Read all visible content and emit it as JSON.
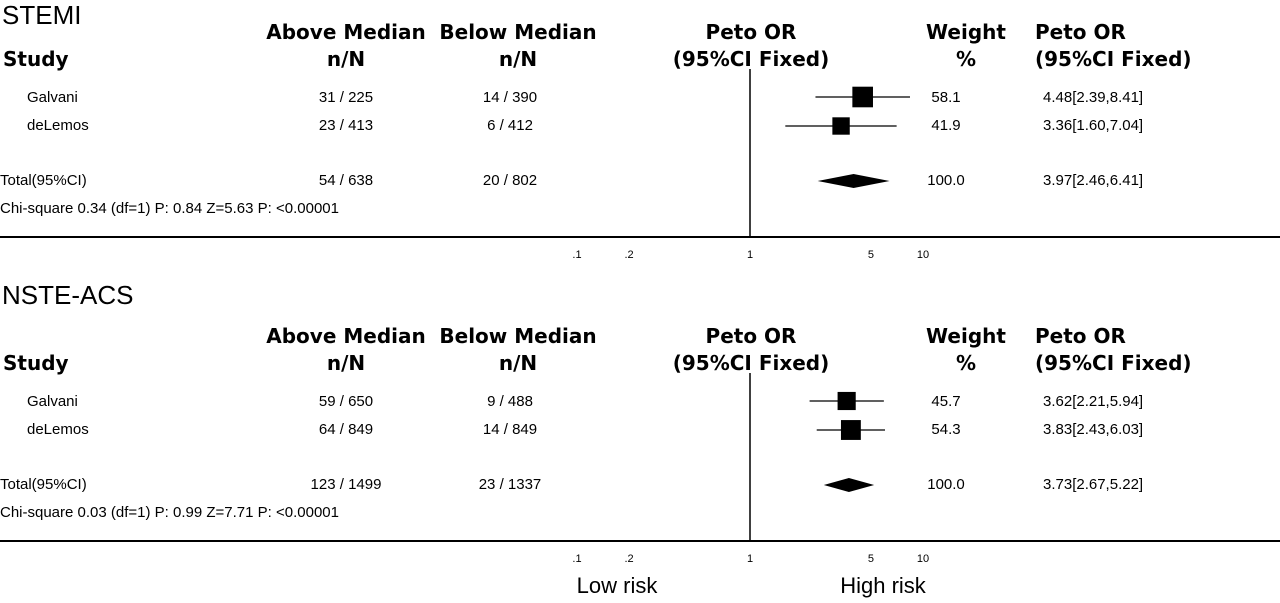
{
  "chart_data": [
    {
      "type": "forest",
      "title": "STEMI",
      "columns": {
        "study": "Study",
        "above": [
          "Above Median",
          "n/N"
        ],
        "below": [
          "Below Median",
          "n/N"
        ],
        "or_plot": [
          "Peto OR",
          "(95%CI Fixed)"
        ],
        "weight": [
          "Weight",
          "%"
        ],
        "or_text": [
          "Peto OR",
          "(95%CI Fixed)"
        ]
      },
      "studies": [
        {
          "name": "Galvani",
          "above": "31 / 225",
          "below": "14 / 390",
          "or": 4.48,
          "lo": 2.39,
          "hi": 8.41,
          "weight": 58.1,
          "weight_text": "58.1",
          "or_text": "4.48[2.39,8.41]"
        },
        {
          "name": "deLemos",
          "above": "23 / 413",
          "below": "6 / 412",
          "or": 3.36,
          "lo": 1.6,
          "hi": 7.04,
          "weight": 41.9,
          "weight_text": "41.9",
          "or_text": "3.36[1.60,7.04]"
        }
      ],
      "total": {
        "name": "Total(95%CI)",
        "above": "54 / 638",
        "below": "20 / 802",
        "or": 3.97,
        "lo": 2.46,
        "hi": 6.41,
        "weight_text": "100.0",
        "or_text": "3.97[2.46,6.41]"
      },
      "stats": "Chi-square 0.34 (df=1) P: 0.84  Z=5.63 P: <0.00001",
      "x_ticks": [
        ".1",
        ".2",
        "1",
        "5",
        "10"
      ],
      "x_tick_values": [
        0.1,
        0.2,
        1,
        5,
        10
      ],
      "x_scale": "log",
      "null_line": 1
    },
    {
      "type": "forest",
      "title": "NSTE-ACS",
      "columns": {
        "study": "Study",
        "above": [
          "Above Median",
          "n/N"
        ],
        "below": [
          "Below Median",
          "n/N"
        ],
        "or_plot": [
          "Peto OR",
          "(95%CI Fixed)"
        ],
        "weight": [
          "Weight",
          "%"
        ],
        "or_text": [
          "Peto OR",
          "(95%CI Fixed)"
        ]
      },
      "studies": [
        {
          "name": "Galvani",
          "above": "59 / 650",
          "below": "9 / 488",
          "or": 3.62,
          "lo": 2.21,
          "hi": 5.94,
          "weight": 45.7,
          "weight_text": "45.7",
          "or_text": "3.62[2.21,5.94]"
        },
        {
          "name": "deLemos",
          "above": "64 / 849",
          "below": "14 / 849",
          "or": 3.83,
          "lo": 2.43,
          "hi": 6.03,
          "weight": 54.3,
          "weight_text": "54.3",
          "or_text": "3.83[2.43,6.03]"
        }
      ],
      "total": {
        "name": "Total(95%CI)",
        "above": "123 / 1499",
        "below": "23 / 1337",
        "or": 3.73,
        "lo": 2.67,
        "hi": 5.22,
        "weight_text": "100.0",
        "or_text": "3.73[2.67,5.22]"
      },
      "stats": "Chi-square 0.03 (df=1) P: 0.99  Z=7.71 P: <0.00001",
      "x_ticks": [
        ".1",
        ".2",
        "1",
        "5",
        "10"
      ],
      "x_tick_values": [
        0.1,
        0.2,
        1,
        5,
        10
      ],
      "x_scale": "log",
      "null_line": 1
    }
  ],
  "footer": {
    "left_label": "Low risk",
    "right_label": "High risk"
  }
}
